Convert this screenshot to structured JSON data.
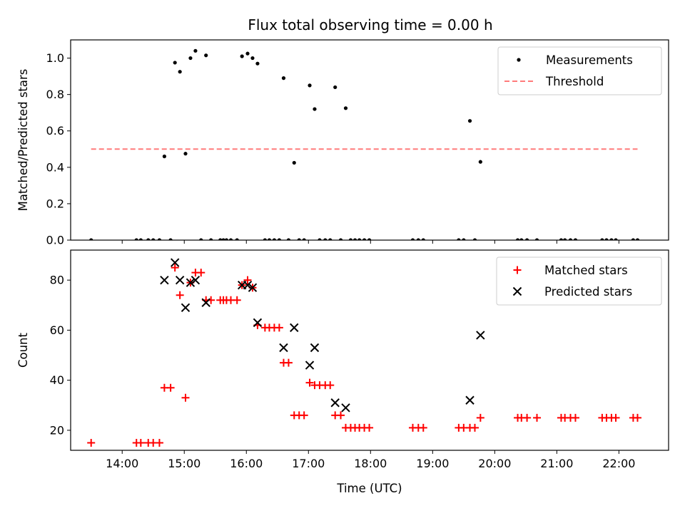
{
  "chart_data": [
    {
      "type": "scatter",
      "title": "Flux total observing time = 0.00 h",
      "ylabel": "Matched/Predicted stars",
      "xlabel": "",
      "xlim": [
        13.17,
        22.8
      ],
      "ylim": [
        0,
        1.1
      ],
      "yticks": [
        0.0,
        0.2,
        0.4,
        0.6,
        0.8,
        1.0
      ],
      "ytick_labels": [
        "0.0",
        "0.2",
        "0.4",
        "0.6",
        "0.8",
        "1.0"
      ],
      "legend_position": "top-right",
      "grid": false,
      "series": [
        {
          "name": "Measurements",
          "color": "#000000",
          "marker": "dot",
          "points": [
            [
              13.5,
              0
            ],
            [
              14.23,
              0
            ],
            [
              14.3,
              0
            ],
            [
              14.42,
              0
            ],
            [
              14.5,
              0
            ],
            [
              14.6,
              0
            ],
            [
              14.68,
              0.46
            ],
            [
              14.78,
              0
            ],
            [
              14.85,
              0.975
            ],
            [
              14.93,
              0.925
            ],
            [
              15.02,
              0.475
            ],
            [
              15.1,
              1.0
            ],
            [
              15.18,
              1.04
            ],
            [
              15.27,
              0
            ],
            [
              15.35,
              1.015
            ],
            [
              15.43,
              0
            ],
            [
              15.58,
              0
            ],
            [
              15.63,
              0
            ],
            [
              15.68,
              0
            ],
            [
              15.75,
              0
            ],
            [
              15.85,
              0
            ],
            [
              15.93,
              1.01
            ],
            [
              16.02,
              1.025
            ],
            [
              16.1,
              1.0
            ],
            [
              16.18,
              0.97
            ],
            [
              16.3,
              0
            ],
            [
              16.37,
              0
            ],
            [
              16.45,
              0
            ],
            [
              16.53,
              0
            ],
            [
              16.6,
              0.89
            ],
            [
              16.68,
              0
            ],
            [
              16.77,
              0.425
            ],
            [
              16.85,
              0
            ],
            [
              16.93,
              0
            ],
            [
              17.02,
              0.85
            ],
            [
              17.1,
              0.72
            ],
            [
              17.18,
              0
            ],
            [
              17.27,
              0
            ],
            [
              17.35,
              0
            ],
            [
              17.43,
              0.84
            ],
            [
              17.52,
              0
            ],
            [
              17.6,
              0.725
            ],
            [
              17.68,
              0
            ],
            [
              17.75,
              0
            ],
            [
              17.82,
              0
            ],
            [
              17.9,
              0
            ],
            [
              17.98,
              0
            ],
            [
              18.68,
              0
            ],
            [
              18.77,
              0
            ],
            [
              18.85,
              0
            ],
            [
              19.42,
              0
            ],
            [
              19.5,
              0
            ],
            [
              19.6,
              0.655
            ],
            [
              19.68,
              0
            ],
            [
              19.77,
              0.43
            ],
            [
              20.37,
              0
            ],
            [
              20.43,
              0
            ],
            [
              20.52,
              0
            ],
            [
              20.68,
              0
            ],
            [
              21.07,
              0
            ],
            [
              21.13,
              0
            ],
            [
              21.22,
              0
            ],
            [
              21.3,
              0
            ],
            [
              21.73,
              0
            ],
            [
              21.8,
              0
            ],
            [
              21.88,
              0
            ],
            [
              21.95,
              0
            ],
            [
              22.23,
              0
            ],
            [
              22.3,
              0
            ]
          ]
        },
        {
          "name": "Threshold",
          "color": "#ff7a7a",
          "style": "dashed",
          "points": [
            [
              13.5,
              0.5
            ],
            [
              22.3,
              0.5
            ]
          ]
        }
      ]
    },
    {
      "type": "scatter",
      "title": "",
      "xlabel": "Time (UTC)",
      "ylabel": "Count",
      "xlim": [
        13.17,
        22.8
      ],
      "ylim": [
        12,
        92
      ],
      "xticks": [
        14,
        15,
        16,
        17,
        18,
        19,
        20,
        21,
        22
      ],
      "xtick_labels": [
        "14:00",
        "15:00",
        "16:00",
        "17:00",
        "18:00",
        "19:00",
        "20:00",
        "21:00",
        "22:00"
      ],
      "yticks": [
        20,
        40,
        60,
        80
      ],
      "ytick_labels": [
        "20",
        "40",
        "60",
        "80"
      ],
      "legend_position": "top-right",
      "grid": false,
      "series": [
        {
          "name": "Matched stars",
          "color": "#ff0000",
          "marker": "plus",
          "points": [
            [
              13.5,
              15
            ],
            [
              14.23,
              15
            ],
            [
              14.3,
              15
            ],
            [
              14.42,
              15
            ],
            [
              14.5,
              15
            ],
            [
              14.6,
              15
            ],
            [
              14.68,
              37
            ],
            [
              14.78,
              37
            ],
            [
              14.85,
              85
            ],
            [
              14.93,
              74
            ],
            [
              15.02,
              33
            ],
            [
              15.1,
              79
            ],
            [
              15.18,
              83
            ],
            [
              15.27,
              83
            ],
            [
              15.35,
              72
            ],
            [
              15.43,
              72
            ],
            [
              15.58,
              72
            ],
            [
              15.63,
              72
            ],
            [
              15.68,
              72
            ],
            [
              15.75,
              72
            ],
            [
              15.85,
              72
            ],
            [
              15.93,
              78
            ],
            [
              16.02,
              80
            ],
            [
              16.1,
              77
            ],
            [
              16.18,
              62
            ],
            [
              16.3,
              61
            ],
            [
              16.37,
              61
            ],
            [
              16.45,
              61
            ],
            [
              16.53,
              61
            ],
            [
              16.6,
              47
            ],
            [
              16.68,
              47
            ],
            [
              16.77,
              26
            ],
            [
              16.85,
              26
            ],
            [
              16.93,
              26
            ],
            [
              17.02,
              39
            ],
            [
              17.1,
              38
            ],
            [
              17.18,
              38
            ],
            [
              17.27,
              38
            ],
            [
              17.35,
              38
            ],
            [
              17.43,
              26
            ],
            [
              17.52,
              26
            ],
            [
              17.6,
              21
            ],
            [
              17.68,
              21
            ],
            [
              17.75,
              21
            ],
            [
              17.82,
              21
            ],
            [
              17.9,
              21
            ],
            [
              17.98,
              21
            ],
            [
              18.68,
              21
            ],
            [
              18.77,
              21
            ],
            [
              18.85,
              21
            ],
            [
              19.42,
              21
            ],
            [
              19.5,
              21
            ],
            [
              19.6,
              21
            ],
            [
              19.68,
              21
            ],
            [
              19.77,
              25
            ],
            [
              20.37,
              25
            ],
            [
              20.43,
              25
            ],
            [
              20.52,
              25
            ],
            [
              20.68,
              25
            ],
            [
              21.07,
              25
            ],
            [
              21.13,
              25
            ],
            [
              21.22,
              25
            ],
            [
              21.3,
              25
            ],
            [
              21.73,
              25
            ],
            [
              21.8,
              25
            ],
            [
              21.88,
              25
            ],
            [
              21.95,
              25
            ],
            [
              22.23,
              25
            ],
            [
              22.3,
              25
            ]
          ]
        },
        {
          "name": "Predicted stars",
          "color": "#000000",
          "marker": "x",
          "points": [
            [
              14.68,
              80
            ],
            [
              14.85,
              87
            ],
            [
              14.93,
              80
            ],
            [
              15.02,
              69
            ],
            [
              15.1,
              79
            ],
            [
              15.18,
              80
            ],
            [
              15.35,
              71
            ],
            [
              15.93,
              78
            ],
            [
              16.02,
              78
            ],
            [
              16.1,
              77
            ],
            [
              16.18,
              63
            ],
            [
              16.6,
              53
            ],
            [
              16.77,
              61
            ],
            [
              17.02,
              46
            ],
            [
              17.1,
              53
            ],
            [
              17.43,
              31
            ],
            [
              17.6,
              29
            ],
            [
              19.6,
              32
            ],
            [
              19.77,
              58
            ]
          ]
        }
      ]
    }
  ]
}
